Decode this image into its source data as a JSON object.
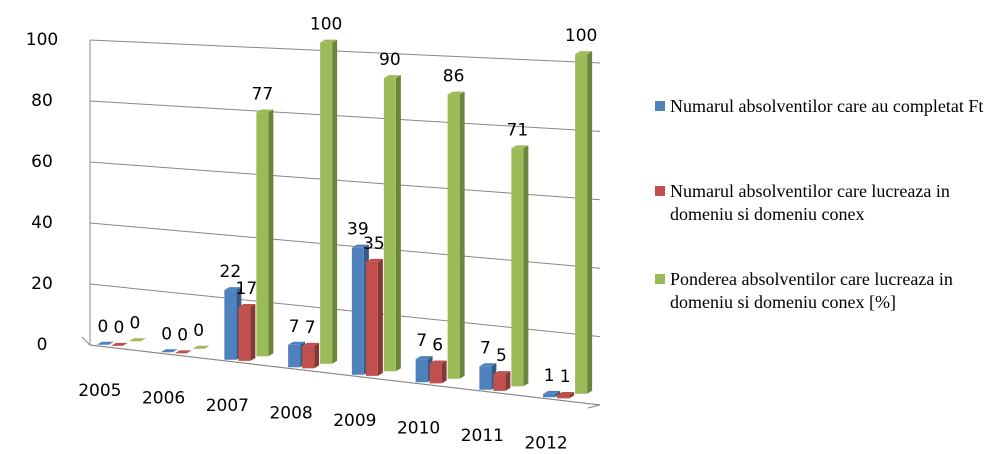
{
  "chart_data": {
    "type": "bar3d",
    "categories": [
      "2005",
      "2006",
      "2007",
      "2008",
      "2009",
      "2010",
      "2011",
      "2012"
    ],
    "series": [
      {
        "name": "Numarul absolventilor care au completat Ft",
        "color": "#4f81bd",
        "values": [
          0,
          0,
          22,
          7,
          39,
          7,
          7,
          1
        ]
      },
      {
        "name": "Numarul absolventilor care lucreaza in domeniu si domeniu conex",
        "color": "#c0504d",
        "values": [
          0,
          0,
          17,
          7,
          35,
          6,
          5,
          1
        ]
      },
      {
        "name": "Ponderea absolventilor care lucreaza in domeniu si domeniu conex [%]",
        "color": "#9bbb59",
        "values": [
          0,
          0,
          77,
          100,
          90,
          86,
          71,
          100
        ]
      }
    ],
    "ylim": [
      0,
      100
    ],
    "yticks": [
      0,
      20,
      40,
      60,
      80,
      100
    ],
    "grid": true
  }
}
